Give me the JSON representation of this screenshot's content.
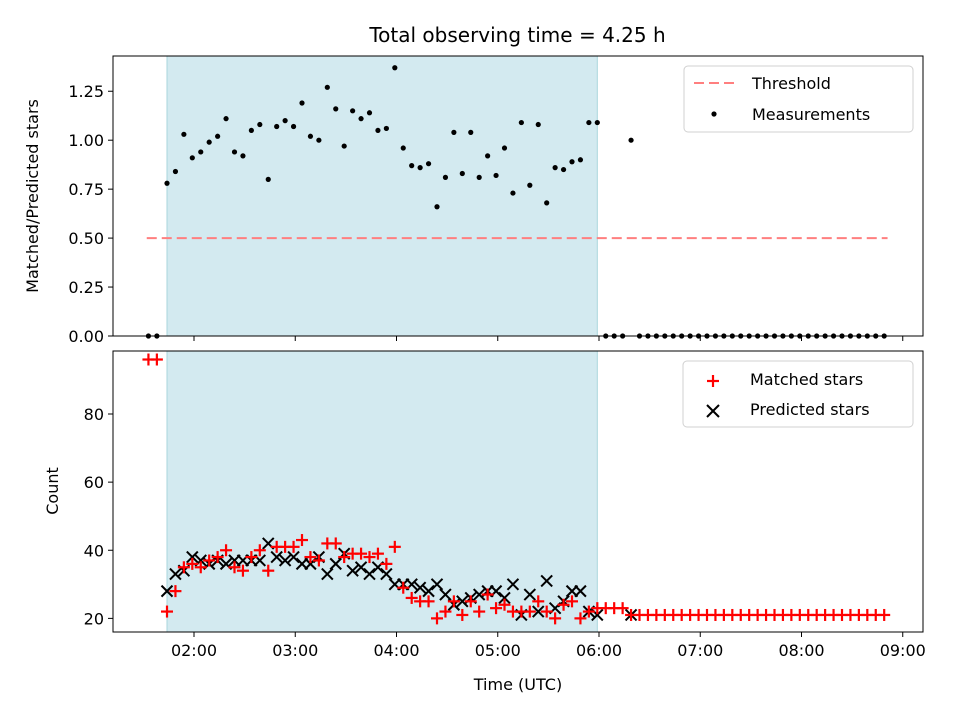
{
  "chart_data": [
    {
      "type": "scatter",
      "title": "Total observing time = 4.25 h",
      "xlabel": "",
      "ylabel": "Matched/Predicted stars",
      "xlim": [
        "01:12",
        "09:12"
      ],
      "ylim": [
        0,
        1.43
      ],
      "yticks": [
        "0.00",
        "0.25",
        "0.50",
        "0.75",
        "1.00",
        "1.25"
      ],
      "grid": false,
      "legend_position": "top-right",
      "shaded_interval": {
        "start": "01:44",
        "end": "05:59",
        "color": "#d3eaf0"
      },
      "series": [
        {
          "name": "Threshold",
          "kind": "dashed-line",
          "color": "#ff7f7f",
          "x": [
            "01:32",
            "08:51"
          ],
          "values": [
            0.5,
            0.5
          ]
        },
        {
          "name": "Measurements",
          "kind": "dots",
          "color": "#000000",
          "x": [
            "01:33",
            "01:38",
            "01:44",
            "01:49",
            "01:54",
            "01:59",
            "02:04",
            "02:09",
            "02:14",
            "02:19",
            "02:24",
            "02:29",
            "02:34",
            "02:39",
            "02:44",
            "02:49",
            "02:54",
            "02:59",
            "03:04",
            "03:09",
            "03:14",
            "03:19",
            "03:24",
            "03:29",
            "03:34",
            "03:39",
            "03:44",
            "03:49",
            "03:54",
            "03:59",
            "04:04",
            "04:09",
            "04:14",
            "04:19",
            "04:24",
            "04:29",
            "04:34",
            "04:39",
            "04:44",
            "04:49",
            "04:54",
            "04:59",
            "05:04",
            "05:09",
            "05:14",
            "05:19",
            "05:24",
            "05:29",
            "05:34",
            "05:39",
            "05:44",
            "05:49",
            "05:54",
            "05:59",
            "06:04",
            "06:09",
            "06:14",
            "06:19",
            "06:24",
            "06:29",
            "06:34",
            "06:39",
            "06:44",
            "06:49",
            "06:54",
            "06:59",
            "07:04",
            "07:09",
            "07:14",
            "07:19",
            "07:24",
            "07:29",
            "07:34",
            "07:39",
            "07:44",
            "07:49",
            "07:54",
            "07:59",
            "08:04",
            "08:09",
            "08:14",
            "08:19",
            "08:24",
            "08:29",
            "08:34",
            "08:39",
            "08:44",
            "08:49"
          ],
          "values": [
            0,
            0,
            0.78,
            0.84,
            1.03,
            0.91,
            0.94,
            0.99,
            1.02,
            1.11,
            0.94,
            0.92,
            1.05,
            1.08,
            0.8,
            1.07,
            1.1,
            1.07,
            1.19,
            1.02,
            1.0,
            1.27,
            1.16,
            0.97,
            1.15,
            1.11,
            1.14,
            1.05,
            1.06,
            1.37,
            0.96,
            0.87,
            0.86,
            0.88,
            0.66,
            0.81,
            1.04,
            0.83,
            1.04,
            0.81,
            0.92,
            0.82,
            0.96,
            0.73,
            1.09,
            0.77,
            1.08,
            0.68,
            0.86,
            0.85,
            0.89,
            0.9,
            1.09,
            1.09,
            0,
            0,
            0,
            1.0,
            0,
            0,
            0,
            0,
            0,
            0,
            0,
            0,
            0,
            0,
            0,
            0,
            0,
            0,
            0,
            0,
            0,
            0,
            0,
            0,
            0,
            0,
            0,
            0,
            0,
            0,
            0,
            0,
            0,
            0
          ]
        }
      ]
    },
    {
      "type": "scatter",
      "title": "",
      "xlabel": "Time (UTC)",
      "ylabel": "Count",
      "xlim": [
        "01:12",
        "09:12"
      ],
      "ylim": [
        16,
        98.5
      ],
      "yticks": [
        "20",
        "40",
        "60",
        "80"
      ],
      "xticks": [
        "02:00",
        "03:00",
        "04:00",
        "05:00",
        "06:00",
        "07:00",
        "08:00",
        "09:00"
      ],
      "grid": false,
      "legend_position": "top-right",
      "shaded_interval": {
        "start": "01:44",
        "end": "05:59",
        "color": "#d3eaf0"
      },
      "series": [
        {
          "name": "Matched stars",
          "kind": "plus",
          "color": "#ff0000",
          "x": [
            "01:33",
            "01:38",
            "01:44",
            "01:49",
            "01:54",
            "01:59",
            "02:04",
            "02:09",
            "02:14",
            "02:19",
            "02:24",
            "02:29",
            "02:34",
            "02:39",
            "02:44",
            "02:49",
            "02:54",
            "02:59",
            "03:04",
            "03:09",
            "03:14",
            "03:19",
            "03:24",
            "03:29",
            "03:34",
            "03:39",
            "03:44",
            "03:49",
            "03:54",
            "03:59",
            "04:04",
            "04:09",
            "04:14",
            "04:19",
            "04:24",
            "04:29",
            "04:34",
            "04:39",
            "04:44",
            "04:49",
            "04:54",
            "04:59",
            "05:04",
            "05:09",
            "05:14",
            "05:19",
            "05:24",
            "05:29",
            "05:34",
            "05:39",
            "05:44",
            "05:49",
            "05:54",
            "05:59",
            "06:04",
            "06:09",
            "06:14",
            "06:19",
            "06:24",
            "06:29",
            "06:34",
            "06:39",
            "06:44",
            "06:49",
            "06:54",
            "06:59",
            "07:04",
            "07:09",
            "07:14",
            "07:19",
            "07:24",
            "07:29",
            "07:34",
            "07:39",
            "07:44",
            "07:49",
            "07:54",
            "07:59",
            "08:04",
            "08:09",
            "08:14",
            "08:19",
            "08:24",
            "08:29",
            "08:34",
            "08:39",
            "08:44",
            "08:49"
          ],
          "values": [
            96,
            96,
            22,
            28,
            35,
            36,
            35,
            37,
            38,
            40,
            35,
            34,
            38,
            40,
            34,
            41,
            41,
            41,
            43,
            38,
            37,
            42,
            42,
            38,
            39,
            39,
            38,
            39,
            36,
            41,
            29,
            26,
            25,
            25,
            20,
            22,
            25,
            21,
            25,
            22,
            27,
            23,
            24,
            22,
            22,
            22,
            25,
            22,
            20,
            24,
            25,
            20,
            22,
            23,
            23,
            23,
            23,
            21,
            21,
            21,
            21,
            21,
            21,
            21,
            21,
            21,
            21,
            21,
            21,
            21,
            21,
            21,
            21,
            21,
            21,
            21,
            21,
            21,
            21,
            21,
            21,
            21,
            21,
            21,
            21,
            21,
            21,
            21
          ]
        },
        {
          "name": "Predicted stars",
          "kind": "cross",
          "color": "#000000",
          "x": [
            "01:44",
            "01:49",
            "01:54",
            "01:59",
            "02:04",
            "02:09",
            "02:14",
            "02:19",
            "02:24",
            "02:29",
            "02:34",
            "02:39",
            "02:44",
            "02:49",
            "02:54",
            "02:59",
            "03:04",
            "03:09",
            "03:14",
            "03:19",
            "03:24",
            "03:29",
            "03:34",
            "03:39",
            "03:44",
            "03:49",
            "03:54",
            "03:59",
            "04:04",
            "04:09",
            "04:14",
            "04:19",
            "04:24",
            "04:29",
            "04:34",
            "04:39",
            "04:44",
            "04:49",
            "04:54",
            "04:59",
            "05:04",
            "05:09",
            "05:14",
            "05:19",
            "05:24",
            "05:29",
            "05:34",
            "05:39",
            "05:44",
            "05:49",
            "05:54",
            "05:59",
            "06:19"
          ],
          "values": [
            28,
            33,
            34,
            38,
            37,
            36,
            37,
            36,
            37,
            37,
            37,
            37,
            42,
            38,
            37,
            38,
            36,
            36,
            38,
            33,
            36,
            39,
            34,
            35,
            33,
            35,
            33,
            30,
            30,
            30,
            29,
            28,
            30,
            27,
            24,
            25,
            26,
            27,
            28,
            28,
            26,
            30,
            21,
            27,
            22,
            31,
            23,
            25,
            28,
            28,
            22,
            21,
            21
          ]
        }
      ]
    }
  ]
}
